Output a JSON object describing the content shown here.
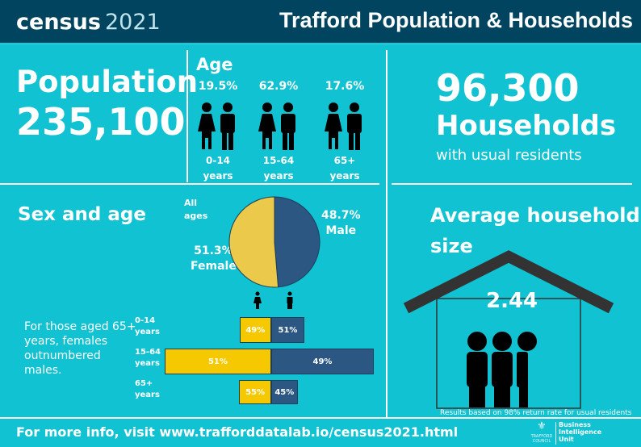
{
  "header": {
    "logo_word": "census",
    "logo_year": "2021",
    "title": "Trafford Population & Households"
  },
  "population": {
    "label": "Population",
    "value": "235,100"
  },
  "age": {
    "title": "Age",
    "groups": [
      {
        "pct": "19.5%",
        "label1": "0-14",
        "label2": "years"
      },
      {
        "pct": "62.9%",
        "label1": "15-64",
        "label2": "years"
      },
      {
        "pct": "17.6%",
        "label1": "65+",
        "label2": "years"
      }
    ]
  },
  "households": {
    "value": "96,300",
    "label": "Households",
    "sub": "with usual residents"
  },
  "sex_age": {
    "title": "Sex and age",
    "all_ages1": "All",
    "all_ages2": "ages",
    "female_pct": "51.3%",
    "female_label": "Female",
    "male_pct": "48.7%",
    "male_label": "Male",
    "note": "For those aged 65+ years, females outnumbered males."
  },
  "avg_household": {
    "title1": "Average household",
    "title2": "size",
    "value": "2.44",
    "note": "Results based on 98% return rate for usual residents"
  },
  "footer": {
    "text": "For more info, visit www.trafforddatalab.io/census2021.html",
    "unit1": "Business",
    "unit2": "Intelligence",
    "unit3": "Unit",
    "council": "TRAFFORD COUNCIL"
  },
  "colors": {
    "background": "#10c2d2",
    "header": "#00445f",
    "female": "#f5c800",
    "male": "#2c5782",
    "pie_female": "#ebc94a"
  },
  "chart_data": [
    {
      "type": "pie",
      "title": "",
      "slices": [
        {
          "name": "Female",
          "value": 51.3
        },
        {
          "name": "Male",
          "value": 48.7
        }
      ]
    },
    {
      "type": "bar",
      "orientation": "horizontal-stacked",
      "categories": [
        "0-14 years",
        "15-64 years",
        "65+ years"
      ],
      "category_labels": [
        [
          "0-14",
          "years"
        ],
        [
          "15-64",
          "years"
        ],
        [
          "65+",
          "years"
        ]
      ],
      "series": [
        {
          "name": "Female",
          "values": [
            49,
            51,
            55
          ],
          "labels": [
            "49%",
            "51%",
            "55%"
          ]
        },
        {
          "name": "Male",
          "values": [
            51,
            49,
            45
          ],
          "labels": [
            "51%",
            "49%",
            "45%"
          ]
        }
      ],
      "age_share": [
        19.5,
        62.9,
        17.6
      ]
    }
  ]
}
